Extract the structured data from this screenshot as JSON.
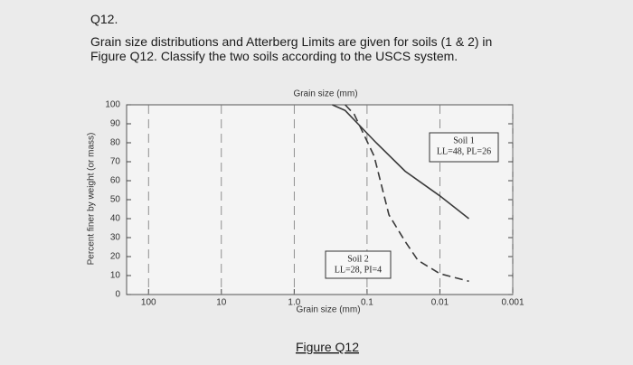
{
  "question": {
    "number": "Q12.",
    "lines": [
      "Grain size distributions and Atterberg Limits are given for soils (1 & 2) in",
      "Figure Q12.  Classify the two soils according to the USCS system."
    ]
  },
  "caption": "Figure Q12",
  "chart_data": {
    "type": "line",
    "x_scale": "log",
    "top_axis_label": "Grain size (mm)",
    "x_label": "Grain size (mm)",
    "y_label": "Percent finer by weight (or mass)",
    "xlim": [
      200,
      0.001
    ],
    "xticks": [
      100,
      10,
      {
        "value": 1,
        "label": "1.0"
      },
      0.1,
      0.01,
      0.001
    ],
    "ylim": [
      0,
      100
    ],
    "yticks": [
      0,
      10,
      20,
      30,
      40,
      50,
      60,
      70,
      80,
      90,
      100
    ],
    "xgrid": true,
    "series": [
      {
        "name": "Soil 1",
        "color": "#3a3a3a",
        "linestyle": "solid",
        "x": [
          0.3,
          0.2,
          0.1,
          0.075,
          0.03,
          0.01,
          0.004
        ],
        "values": [
          100,
          97,
          85,
          80,
          65,
          52,
          40
        ]
      },
      {
        "name": "Soil 2",
        "color": "#3a3a3a",
        "linestyle": "dashed",
        "x": [
          0.2,
          0.15,
          0.08,
          0.05,
          0.03,
          0.02,
          0.01,
          0.004
        ],
        "values": [
          100,
          95,
          73,
          42,
          28,
          18,
          11,
          7
        ]
      }
    ],
    "annotations": [
      {
        "lines": [
          "Soil 1",
          "LL=48, PL=26"
        ]
      },
      {
        "lines": [
          "Soil 2",
          "LL=28, PI=4"
        ]
      }
    ]
  }
}
